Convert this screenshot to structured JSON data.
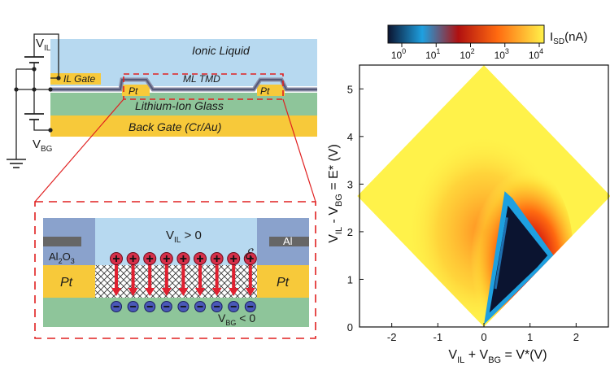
{
  "device": {
    "ionic_liquid": "Ionic Liquid",
    "il_gate": "IL Gate",
    "ml_tmd": "ML TMD",
    "pt_left": "Pt",
    "pt_right": "Pt",
    "lithium_glass": "Lithium-Ion Glass",
    "back_gate": "Back Gate (Cr/Au)",
    "v_il": {
      "main": "V",
      "sub": "IL"
    },
    "v_bg": {
      "main": "V",
      "sub": "BG"
    }
  },
  "zoom": {
    "v_il_gt": {
      "main": "V",
      "sub": "IL",
      "rest": " > 0"
    },
    "v_bg_lt": {
      "main": "V",
      "sub": "BG",
      "rest": " < 0"
    },
    "al2o3": {
      "a": "Al",
      "sub": "2",
      "b": "O",
      "sub2": "3"
    },
    "al": "Al",
    "pt_left": "Pt",
    "pt_right": "Pt",
    "field": "ℰ",
    "charge_count": 9
  },
  "chart_data": {
    "type": "heatmap",
    "colorbar": {
      "label_main": "I",
      "label_sub": "SD",
      "label_rest": "(nA)",
      "ticks": [
        {
          "base": "10",
          "exp": "0"
        },
        {
          "base": "10",
          "exp": "1"
        },
        {
          "base": "10",
          "exp": "2"
        },
        {
          "base": "10",
          "exp": "3"
        },
        {
          "base": "10",
          "exp": "4"
        }
      ],
      "colors": [
        "#0b1430",
        "#1ea0e0",
        "#b01010",
        "#ff6a10",
        "#fff24a"
      ]
    },
    "xlabel": {
      "a": "V",
      "asub": "IL",
      "b": " + V",
      "bsub": "BG",
      "c": " = V*(V)"
    },
    "ylabel": {
      "a": "V",
      "asub": "IL",
      "b": " - V",
      "bsub": "BG",
      "c": " = E* (V)"
    },
    "xlim": [
      -2.7,
      2.7
    ],
    "ylim": [
      0,
      5.5
    ],
    "xticks": [
      "-2",
      "-1",
      "0",
      "1",
      "2"
    ],
    "yticks": [
      "0",
      "1",
      "2",
      "3",
      "4",
      "5"
    ],
    "xtick_values": [
      -2,
      -1,
      0,
      1,
      2
    ],
    "ytick_values": [
      0,
      1,
      2,
      3,
      4,
      5
    ]
  }
}
